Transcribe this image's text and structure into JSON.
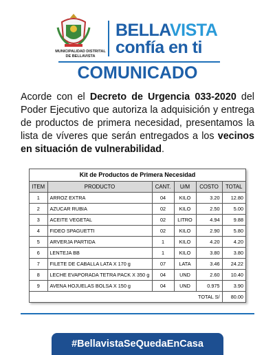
{
  "header": {
    "crest_caption": [
      "MUNICIPALIDAD DISTRITAL",
      "DE BELLAVISTA"
    ],
    "brand": [
      "BELLA",
      "VISTA"
    ],
    "tagline": "confía en ti"
  },
  "title": "COMUNICADO",
  "paragraph": [
    "Acorde con el ",
    "Decreto de Urgencia 033-2020",
    " del Poder Ejecutivo que autoriza la adquisición y entrega de productos de primera necesidad, presentamos la lista de víveres que serán entregados a los ",
    "vecinos en situación de vulnerabilidad",
    "."
  ],
  "table": {
    "title": "Kit de Productos de Primera Necesidad",
    "columns": [
      "ITEM",
      "PRODUCTO",
      "CANT.",
      "U/M",
      "COSTO",
      "TOTAL"
    ],
    "rows": [
      [
        "1",
        "ARROZ EXTRA",
        "04",
        "KILO",
        "3.20",
        "12.80"
      ],
      [
        "2",
        "AZUCAR RUBIA",
        "02",
        "KILO",
        "2.50",
        "5.00"
      ],
      [
        "3",
        "ACEITE VEGETAL",
        "02",
        "LITRO",
        "4.94",
        "9.88"
      ],
      [
        "4",
        "FIDEO SPAGUETTI",
        "02",
        "KILO",
        "2.90",
        "5.80"
      ],
      [
        "5",
        "ARVERJA PARTIDA",
        "1",
        "KILO",
        "4.20",
        "4.20"
      ],
      [
        "6",
        "LENTEJA BB",
        "1",
        "KILO",
        "3.80",
        "3.80"
      ],
      [
        "7",
        "FILETE DE CABALLA LATA X 170 g",
        "07",
        "LATA",
        "3.46",
        "24.22"
      ],
      [
        "8",
        "LECHE EVAPORADA TETRA PACK X 350 g",
        "04",
        "UND",
        "2.60",
        "10.40"
      ],
      [
        "9",
        "AVENA HOJUELAS BOLSA X 150 g",
        "04",
        "UND",
        "0.975",
        "3.90"
      ]
    ],
    "total_label": "TOTAL S/",
    "total": "80.00"
  },
  "hashtag": "#BellavistaSeQuedaEnCasa"
}
